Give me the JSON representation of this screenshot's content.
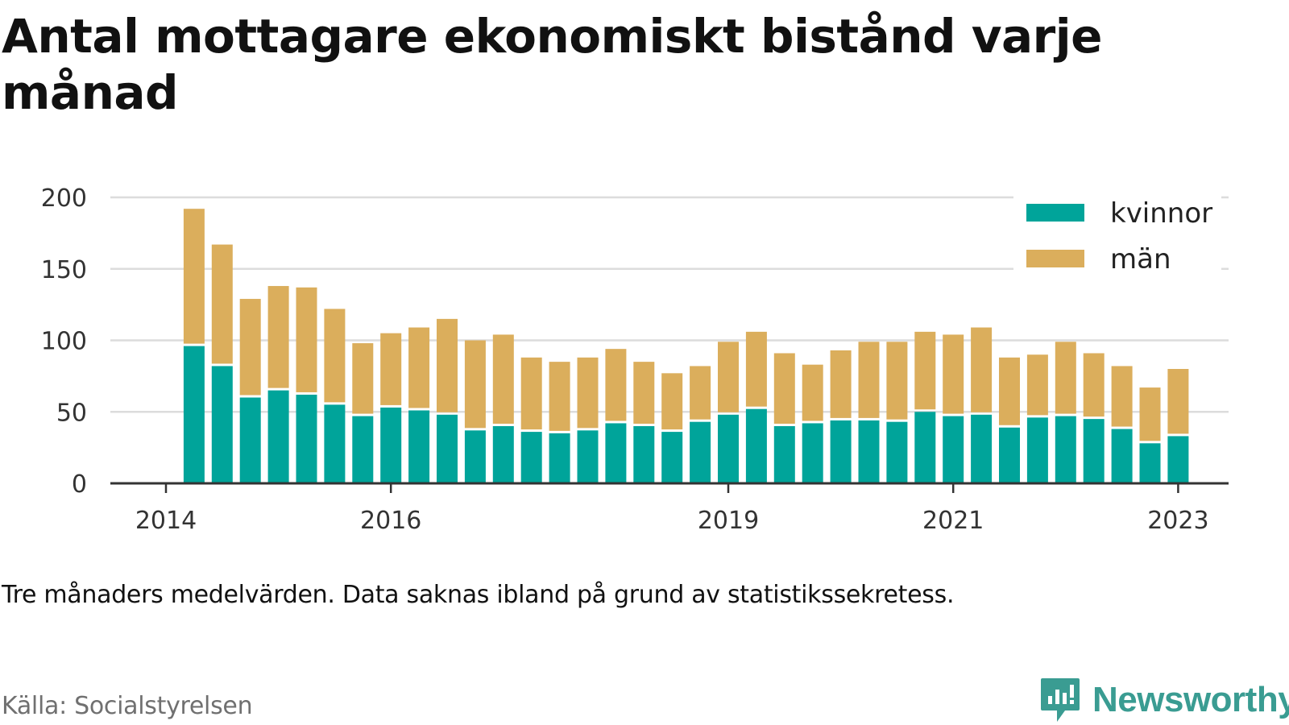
{
  "title": "Antal mottagare ekonomiskt bistånd varje månad",
  "note": "Tre månaders medelvärden. Data saknas ibland på grund av statistikssekretess.",
  "source": "Källa: Socialstyrelsen",
  "brand": {
    "name": "Newsworthy",
    "icon": "newsworthy-logo-icon",
    "color": "#3a9c92"
  },
  "chart_data": {
    "type": "bar",
    "stacked": true,
    "x_unit": "quarter",
    "categories": [
      "2014-Q2",
      "2014-Q3",
      "2014-Q4",
      "2015-Q1",
      "2015-Q2",
      "2015-Q3",
      "2015-Q4",
      "2016-Q1",
      "2016-Q2",
      "2016-Q3",
      "2016-Q4",
      "2017-Q1",
      "2017-Q2",
      "2017-Q3",
      "2017-Q4",
      "2018-Q1",
      "2018-Q2",
      "2018-Q3",
      "2018-Q4",
      "2019-Q1",
      "2019-Q2",
      "2019-Q3",
      "2019-Q4",
      "2020-Q1",
      "2020-Q2",
      "2020-Q3",
      "2020-Q4",
      "2021-Q1",
      "2021-Q2",
      "2021-Q3",
      "2021-Q4",
      "2022-Q1",
      "2022-Q2",
      "2022-Q3",
      "2022-Q4",
      "2023-Q1"
    ],
    "series": [
      {
        "name": "kvinnor",
        "color": "#00a49a",
        "values": [
          96,
          82,
          60,
          65,
          62,
          55,
          47,
          53,
          51,
          48,
          37,
          40,
          36,
          35,
          37,
          42,
          40,
          36,
          43,
          48,
          52,
          40,
          42,
          44,
          44,
          43,
          50,
          47,
          48,
          39,
          46,
          47,
          45,
          38,
          28,
          33
        ]
      },
      {
        "name": "män",
        "color": "#dbae5c",
        "values": [
          96,
          85,
          69,
          73,
          75,
          67,
          51,
          52,
          58,
          67,
          63,
          64,
          52,
          50,
          51,
          52,
          45,
          41,
          39,
          51,
          54,
          51,
          41,
          49,
          55,
          56,
          56,
          57,
          61,
          49,
          44,
          52,
          46,
          44,
          39,
          47
        ]
      }
    ],
    "x_ticks": [
      {
        "label": "2014",
        "pos": "2014-Q1"
      },
      {
        "label": "2016",
        "pos": "2016-Q1"
      },
      {
        "label": "2019",
        "pos": "2019-Q1"
      },
      {
        "label": "2021",
        "pos": "2021-Q1"
      },
      {
        "label": "2023",
        "pos": "2023-Q1"
      }
    ],
    "y_ticks": [
      0,
      50,
      100,
      150,
      200
    ],
    "ylim": [
      0,
      200
    ],
    "grid": true,
    "legend": "top-right",
    "xlabel": "",
    "ylabel": ""
  }
}
